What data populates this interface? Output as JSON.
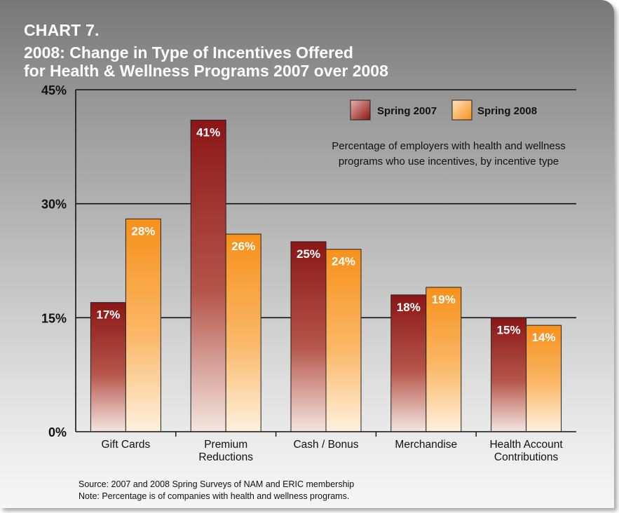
{
  "chart_label": "CHART 7.",
  "chart_data": {
    "type": "bar",
    "title": "2008: Change in Type of Incentives Offered",
    "title_line2": "for Health & Wellness Programs 2007 over 2008",
    "subtitle": "Percentage of employers with health and wellness programs who use incentives, by incentive type",
    "subtitle_lines": [
      "Percentage of employers with health and wellness",
      "programs who use incentives, by incentive type"
    ],
    "categories": [
      "Gift Cards",
      "Premium Reductions",
      "Cash / Bonus",
      "Merchandise",
      "Health Account Contributions"
    ],
    "category_lines": [
      [
        "Gift Cards"
      ],
      [
        "Premium",
        "Reductions"
      ],
      [
        "Cash / Bonus"
      ],
      [
        "Merchandise"
      ],
      [
        "Health Account",
        "Contributions"
      ]
    ],
    "series": [
      {
        "name": "Spring 2007",
        "values": [
          17,
          41,
          25,
          18,
          15
        ],
        "labels": [
          "17%",
          "41%",
          "25%",
          "18%",
          "15%"
        ],
        "color": "#8e1a1a"
      },
      {
        "name": "Spring 2008",
        "values": [
          28,
          26,
          24,
          19,
          14
        ],
        "labels": [
          "28%",
          "26%",
          "24%",
          "19%",
          "14%"
        ],
        "color": "#f7941d"
      }
    ],
    "ylim": [
      0,
      45
    ],
    "yticks": [
      0,
      15,
      30,
      45
    ],
    "ytick_labels": [
      "0%",
      "15%",
      "30%",
      "45%"
    ],
    "grid": true,
    "legend": "top-right"
  },
  "source": "Source: 2007 and 2008 Spring Surveys of NAM and ERIC membership",
  "note": "Note: Percentage is of companies with health and wellness programs."
}
